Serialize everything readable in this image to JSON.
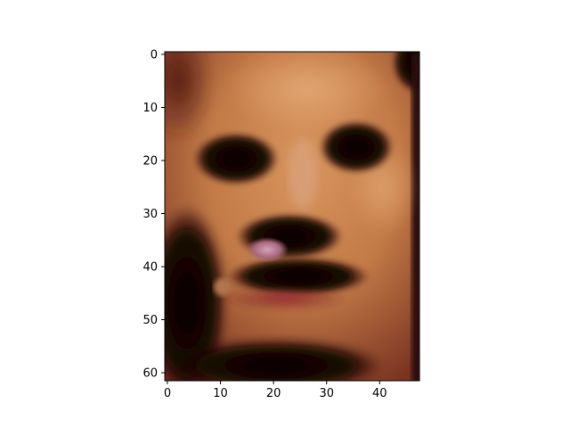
{
  "chart_data": {
    "type": "heatmap",
    "image_kind": "photo-crop",
    "image_shape": [
      62,
      48
    ],
    "image_origin": "upper",
    "title": "",
    "xlabel": "",
    "ylabel": "",
    "xlim": [
      -0.5,
      47.5
    ],
    "ylim": [
      61.5,
      -0.5
    ],
    "grid": false,
    "legend": "none",
    "x_ticks": [
      0,
      10,
      20,
      30,
      40
    ],
    "y_ticks": [
      0,
      10,
      20,
      30,
      40,
      50,
      60
    ],
    "x_tick_labels": [
      "0",
      "10",
      "20",
      "30",
      "40"
    ],
    "y_tick_labels": [
      "0",
      "10",
      "20",
      "30",
      "40",
      "50",
      "60"
    ],
    "dominant_colors": {
      "skin_highlight": "#d9965e",
      "skin_mid": "#b86a3e",
      "skin_shadow": "#7a3321",
      "dark_region": "#1a0806",
      "lip_red": "#8a2a30",
      "highlight_pink": "#c98fa8"
    }
  }
}
